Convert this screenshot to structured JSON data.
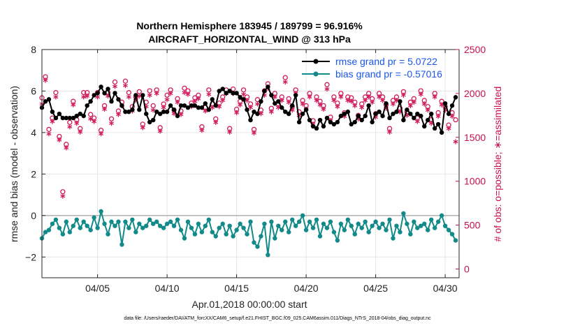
{
  "chart_data": {
    "type": "line",
    "title": [
      "Northern Hemisphere 183945 / 189799 = 96.916%",
      "AIRCRAFT_HORIZONTAL_WIND @ 313 hPa"
    ],
    "xlabel": "Apr.01,2018 00:00:00 start",
    "ylabel_left": "rmse and bias (model - observation)",
    "ylabel_right": "# of obs: o=possible; ∗=assimilated",
    "xlim": [
      1,
      31
    ],
    "ylim_left": [
      -3,
      8
    ],
    "ylim_right": [
      -100,
      2500
    ],
    "x_ticks": [
      {
        "value": 5,
        "label": "04/05"
      },
      {
        "value": 10,
        "label": "04/10"
      },
      {
        "value": 15,
        "label": "04/15"
      },
      {
        "value": 20,
        "label": "04/20"
      },
      {
        "value": 25,
        "label": "04/25"
      },
      {
        "value": 30,
        "label": "04/30"
      }
    ],
    "y_ticks_left": [
      -2,
      0,
      2,
      4,
      6,
      8
    ],
    "y_ticks_right": [
      0,
      500,
      1000,
      1500,
      2000,
      2500
    ],
    "grid": true,
    "legend_placement": "top-right",
    "zero_line": 0,
    "colors": {
      "rmse": "#000000",
      "bias": "#138a8a",
      "obs": "#d11a5c",
      "legend_text": "#1a56e8",
      "right_axis": "#c8104f"
    },
    "series": [
      {
        "name": "rmse grand pr = 5.0722",
        "axis": "left",
        "marker": "filled-circle",
        "x": [
          1.0,
          1.25,
          1.5,
          1.75,
          2.0,
          2.25,
          2.5,
          2.75,
          3.0,
          3.25,
          3.5,
          3.75,
          4.0,
          4.25,
          4.5,
          4.75,
          5.0,
          5.25,
          5.5,
          5.75,
          6.0,
          6.25,
          6.5,
          6.75,
          7.0,
          7.25,
          7.5,
          7.75,
          8.0,
          8.25,
          8.5,
          8.75,
          9.0,
          9.25,
          9.5,
          9.75,
          10.0,
          10.25,
          10.5,
          10.75,
          11.0,
          11.25,
          11.5,
          11.75,
          12.0,
          12.25,
          12.5,
          12.75,
          13.0,
          13.25,
          13.5,
          13.75,
          14.0,
          14.25,
          14.5,
          14.75,
          15.0,
          15.25,
          15.5,
          15.75,
          16.0,
          16.25,
          16.5,
          16.75,
          17.0,
          17.25,
          17.5,
          17.75,
          18.0,
          18.25,
          18.5,
          18.75,
          19.0,
          19.25,
          19.5,
          19.75,
          20.0,
          20.25,
          20.5,
          20.75,
          21.0,
          21.25,
          21.5,
          21.75,
          22.0,
          22.25,
          22.5,
          22.75,
          23.0,
          23.25,
          23.5,
          23.75,
          24.0,
          24.25,
          24.5,
          24.75,
          25.0,
          25.25,
          25.5,
          25.75,
          26.0,
          26.25,
          26.5,
          26.75,
          27.0,
          27.25,
          27.5,
          27.75,
          28.0,
          28.25,
          28.5,
          28.75,
          29.0,
          29.25,
          29.5,
          29.75,
          30.0,
          30.25,
          30.5,
          30.75
        ],
        "values": [
          5.2,
          5.5,
          5.6,
          5.0,
          4.7,
          4.9,
          4.7,
          4.7,
          4.7,
          4.7,
          4.8,
          4.9,
          4.8,
          5.3,
          5.5,
          5.8,
          5.9,
          6.2,
          5.9,
          6.1,
          5.5,
          5.9,
          5.6,
          5.3,
          5.0,
          5.0,
          5.1,
          5.8,
          5.1,
          5.8,
          4.9,
          4.5,
          4.6,
          5.0,
          4.9,
          5.0,
          5.0,
          5.3,
          5.1,
          4.8,
          5.3,
          5.3,
          5.2,
          5.3,
          5.3,
          5.2,
          5.2,
          5.4,
          5.1,
          5.6,
          5.3,
          6.0,
          6.1,
          5.9,
          6.0,
          5.9,
          5.9,
          5.7,
          5.6,
          5.1,
          4.6,
          5.0,
          4.9,
          5.5,
          6.0,
          6.2,
          5.8,
          5.4,
          5.5,
          5.2,
          5.0,
          4.9,
          5.3,
          5.8,
          4.5,
          4.9,
          5.1,
          4.6,
          4.3,
          4.2,
          4.6,
          4.3,
          4.7,
          4.5,
          4.4,
          4.5,
          4.8,
          4.9,
          5.0,
          4.4,
          4.5,
          4.8,
          4.6,
          4.8,
          5.3,
          4.5,
          4.9,
          5.0,
          4.8,
          5.4,
          4.7,
          4.9,
          5.0,
          5.5,
          4.6,
          5.1,
          4.9,
          4.7,
          4.9,
          4.8,
          4.3,
          4.6,
          4.9,
          4.2,
          4.4,
          4.0,
          5.4,
          4.9,
          5.3,
          5.7
        ]
      },
      {
        "name": "bias grand pr = -0.57016",
        "axis": "left",
        "marker": "filled-circle",
        "x": [
          1.0,
          1.25,
          1.5,
          1.75,
          2.0,
          2.25,
          2.5,
          2.75,
          3.0,
          3.25,
          3.5,
          3.75,
          4.0,
          4.25,
          4.5,
          4.75,
          5.0,
          5.25,
          5.5,
          5.75,
          6.0,
          6.25,
          6.5,
          6.75,
          7.0,
          7.25,
          7.5,
          7.75,
          8.0,
          8.25,
          8.5,
          8.75,
          9.0,
          9.25,
          9.5,
          9.75,
          10.0,
          10.25,
          10.5,
          10.75,
          11.0,
          11.25,
          11.5,
          11.75,
          12.0,
          12.25,
          12.5,
          12.75,
          13.0,
          13.25,
          13.5,
          13.75,
          14.0,
          14.25,
          14.5,
          14.75,
          15.0,
          15.25,
          15.5,
          15.75,
          16.0,
          16.25,
          16.5,
          16.75,
          17.0,
          17.25,
          17.5,
          17.75,
          18.0,
          18.25,
          18.5,
          18.75,
          19.0,
          19.25,
          19.5,
          19.75,
          20.0,
          20.25,
          20.5,
          20.75,
          21.0,
          21.25,
          21.5,
          21.75,
          22.0,
          22.25,
          22.5,
          22.75,
          23.0,
          23.25,
          23.5,
          23.75,
          24.0,
          24.25,
          24.5,
          24.75,
          25.0,
          25.25,
          25.5,
          25.75,
          26.0,
          26.25,
          26.5,
          26.75,
          27.0,
          27.25,
          27.5,
          27.75,
          28.0,
          28.25,
          28.5,
          28.75,
          29.0,
          29.25,
          29.5,
          29.75,
          30.0,
          30.25,
          30.5,
          30.75
        ],
        "values": [
          -1.1,
          -0.8,
          -0.7,
          -0.4,
          -0.2,
          -0.6,
          -0.9,
          -0.3,
          -0.8,
          -0.5,
          -0.2,
          -0.6,
          -0.3,
          -0.5,
          -0.7,
          -0.1,
          -0.6,
          0.2,
          -0.4,
          -0.9,
          -0.3,
          -0.5,
          -0.3,
          -1.4,
          -0.3,
          -0.6,
          -0.2,
          -0.8,
          -0.4,
          -0.6,
          -0.5,
          -0.2,
          -0.4,
          -0.3,
          -0.5,
          -0.6,
          -0.4,
          -0.3,
          -0.5,
          -0.2,
          -0.7,
          -1.1,
          -0.3,
          -0.6,
          -0.9,
          -0.4,
          -0.8,
          -0.5,
          -0.2,
          -0.8,
          -1.0,
          -0.6,
          -0.4,
          -0.9,
          -0.5,
          -1.0,
          -0.7,
          -0.4,
          -0.6,
          -0.9,
          -0.3,
          -1.3,
          -1.5,
          -1.0,
          -0.4,
          -1.9,
          -0.3,
          -1.1,
          -0.5,
          -0.7,
          -0.3,
          -0.8,
          -0.2,
          -0.5,
          -0.3,
          0.0,
          -0.7,
          -0.3,
          -0.6,
          -0.2,
          -1.0,
          -0.4,
          -0.6,
          -0.3,
          -0.8,
          -1.2,
          -0.4,
          -0.7,
          -0.2,
          -0.5,
          -0.9,
          -0.4,
          -0.6,
          -0.3,
          -0.8,
          -0.5,
          -0.3,
          -0.6,
          -0.4,
          -0.7,
          -0.2,
          -1.1,
          -0.5,
          -0.8,
          0.1,
          -0.4,
          -0.9,
          -0.3,
          -0.6,
          -0.5,
          -0.4,
          -0.7,
          -0.2,
          -0.6,
          -0.3,
          0.0,
          -0.5,
          -0.7,
          -0.9,
          -1.2
        ]
      },
      {
        "name": "obs possible",
        "axis": "right",
        "marker": "open-circle",
        "x": [
          1.0,
          1.25,
          1.5,
          1.75,
          2.0,
          2.25,
          2.5,
          2.75,
          3.0,
          3.25,
          3.5,
          3.75,
          4.0,
          4.25,
          4.5,
          4.75,
          5.0,
          5.25,
          5.5,
          5.75,
          6.0,
          6.25,
          6.5,
          6.75,
          7.0,
          7.25,
          7.5,
          7.75,
          8.0,
          8.25,
          8.5,
          8.75,
          9.0,
          9.25,
          9.5,
          9.75,
          10.0,
          10.25,
          10.5,
          10.75,
          11.0,
          11.25,
          11.5,
          11.75,
          12.0,
          12.25,
          12.5,
          12.75,
          13.0,
          13.25,
          13.5,
          13.75,
          14.0,
          14.25,
          14.5,
          14.75,
          15.0,
          15.25,
          15.5,
          15.75,
          16.0,
          16.25,
          16.5,
          16.75,
          17.0,
          17.25,
          17.5,
          17.75,
          18.0,
          18.25,
          18.5,
          18.75,
          19.0,
          19.25,
          19.5,
          19.75,
          20.0,
          20.25,
          20.5,
          20.75,
          21.0,
          21.25,
          21.5,
          21.75,
          22.0,
          22.25,
          22.5,
          22.75,
          23.0,
          23.25,
          23.5,
          23.75,
          24.0,
          24.25,
          24.5,
          24.75,
          25.0,
          25.25,
          25.5,
          25.75,
          26.0,
          26.25,
          26.5,
          26.75,
          27.0,
          27.25,
          27.5,
          27.75,
          28.0,
          28.25,
          28.5,
          28.75,
          29.0,
          29.25,
          29.5,
          29.75,
          30.0,
          30.25,
          30.5,
          30.75
        ],
        "values": [
          1950,
          2190,
          1590,
          1720,
          2010,
          1510,
          880,
          1420,
          1670,
          1910,
          1700,
          1600,
          2010,
          2010,
          1760,
          1720,
          2010,
          1580,
          1860,
          2010,
          1710,
          2130,
          1800,
          1900,
          2140,
          2010,
          1850,
          1960,
          2020,
          1650,
          1900,
          2030,
          1860,
          2040,
          1610,
          1880,
          1980,
          2040,
          1810,
          1940,
          1800,
          2060,
          2030,
          1890,
          1950,
          1980,
          1620,
          1840,
          2040,
          1880,
          1710,
          1890,
          1960,
          2040,
          1600,
          2050,
          1820,
          1910,
          2040,
          1960,
          1880,
          1590,
          1930,
          1810,
          2030,
          2110,
          1830,
          2000,
          1880,
          1960,
          2180,
          1940,
          1850,
          2040,
          1790,
          1920,
          1860,
          2000,
          1690,
          1960,
          1910,
          1860,
          2100,
          1730,
          1960,
          1890,
          2000,
          1780,
          1960,
          1950,
          1900,
          1750,
          1880,
          1960,
          2000,
          1940,
          1770,
          2000,
          1960,
          1870,
          1600,
          1920,
          1960,
          1830,
          2020,
          1790,
          1900,
          1940,
          1720,
          2030,
          1920,
          1850,
          1700,
          2000,
          1780,
          1910,
          1850,
          1640,
          1780,
          1700
        ]
      },
      {
        "name": "obs assimilated",
        "axis": "right",
        "marker": "asterisk",
        "x": [
          1.0,
          1.25,
          1.5,
          1.75,
          2.0,
          2.25,
          2.5,
          2.75,
          3.0,
          3.25,
          3.5,
          3.75,
          4.0,
          4.25,
          4.5,
          4.75,
          5.0,
          5.25,
          5.5,
          5.75,
          6.0,
          6.25,
          6.5,
          6.75,
          7.0,
          7.25,
          7.5,
          7.75,
          8.0,
          8.25,
          8.5,
          8.75,
          9.0,
          9.25,
          9.5,
          9.75,
          10.0,
          10.25,
          10.5,
          10.75,
          11.0,
          11.25,
          11.5,
          11.75,
          12.0,
          12.25,
          12.5,
          12.75,
          13.0,
          13.25,
          13.5,
          13.75,
          14.0,
          14.25,
          14.5,
          14.75,
          15.0,
          15.25,
          15.5,
          15.75,
          16.0,
          16.25,
          16.5,
          16.75,
          17.0,
          17.25,
          17.5,
          17.75,
          18.0,
          18.25,
          18.5,
          18.75,
          19.0,
          19.25,
          19.5,
          19.75,
          20.0,
          20.25,
          20.5,
          20.75,
          21.0,
          21.25,
          21.5,
          21.75,
          22.0,
          22.25,
          22.5,
          22.75,
          23.0,
          23.25,
          23.5,
          23.75,
          24.0,
          24.25,
          24.5,
          24.75,
          25.0,
          25.25,
          25.5,
          25.75,
          26.0,
          26.25,
          26.5,
          26.75,
          27.0,
          27.25,
          27.5,
          27.75,
          28.0,
          28.25,
          28.5,
          28.75,
          29.0,
          29.25,
          29.5,
          29.75,
          30.0,
          30.25,
          30.5,
          30.75
        ],
        "values": [
          1880,
          2150,
          1540,
          1680,
          1960,
          1470,
          830,
          1380,
          1620,
          1870,
          1660,
          1560,
          1960,
          1970,
          1710,
          1680,
          1960,
          1540,
          1820,
          1970,
          1660,
          2080,
          1760,
          1860,
          2090,
          1960,
          1800,
          1920,
          1970,
          1610,
          1850,
          1980,
          1810,
          2000,
          1570,
          1840,
          1930,
          2000,
          1770,
          1900,
          1760,
          2010,
          1990,
          1850,
          1910,
          1940,
          1580,
          1800,
          1990,
          1840,
          1670,
          1850,
          1920,
          2000,
          1560,
          2000,
          1780,
          1870,
          1990,
          1920,
          1840,
          1550,
          1880,
          1770,
          1980,
          2060,
          1790,
          1960,
          1840,
          1920,
          2130,
          1900,
          1810,
          2000,
          1750,
          1880,
          1820,
          1960,
          1650,
          1920,
          1870,
          1820,
          2050,
          1690,
          1920,
          1850,
          1960,
          1740,
          1920,
          1910,
          1860,
          1710,
          1840,
          1920,
          1960,
          1900,
          1730,
          1960,
          1920,
          1830,
          1560,
          1880,
          1920,
          1790,
          1980,
          1750,
          1860,
          1900,
          1680,
          1990,
          1880,
          1810,
          1660,
          1960,
          1740,
          1870,
          1810,
          1600,
          1740,
          1450
        ]
      }
    ]
  },
  "footer_text": "data file: /Users/raeder/DAI/ATM_forcXX/CAM6_setup/f.e21.FHIST_BGC.f09_025.CAM6assim.011/Diags_NTrS_2018-04/obs_diag_output.nc"
}
